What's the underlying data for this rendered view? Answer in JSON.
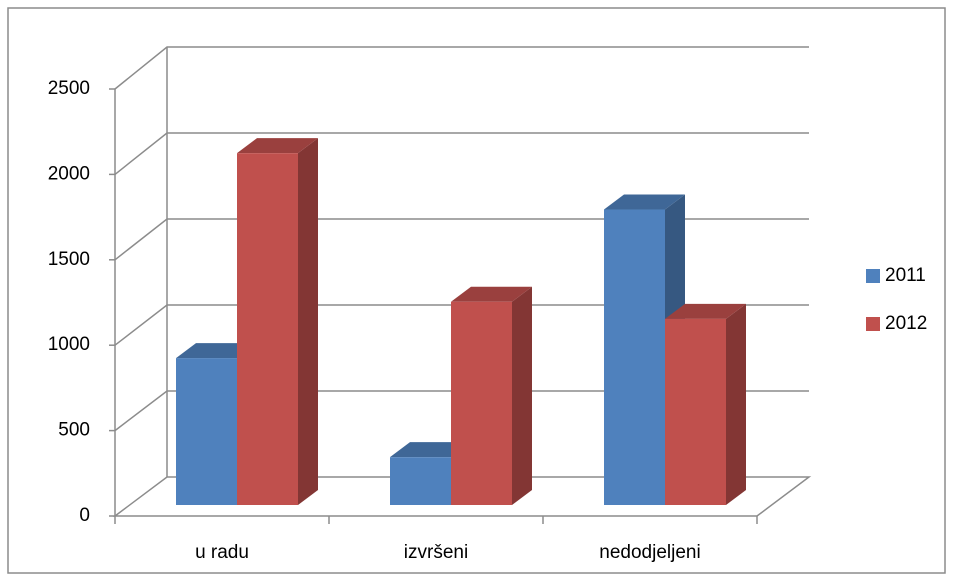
{
  "chart_data": {
    "type": "bar3d",
    "categories": [
      "u radu",
      "izvršeni",
      "nedodjeljeni"
    ],
    "series": [
      {
        "name": "2011",
        "color": "#4f81bd",
        "values": [
          860,
          280,
          1730
        ]
      },
      {
        "name": "2012",
        "color": "#c0504d",
        "values": [
          2060,
          1190,
          1090
        ]
      }
    ],
    "ylim": [
      0,
      2500
    ],
    "yticks": [
      0,
      500,
      1000,
      1500,
      2000,
      2500
    ],
    "grid": true,
    "legend": "right"
  }
}
